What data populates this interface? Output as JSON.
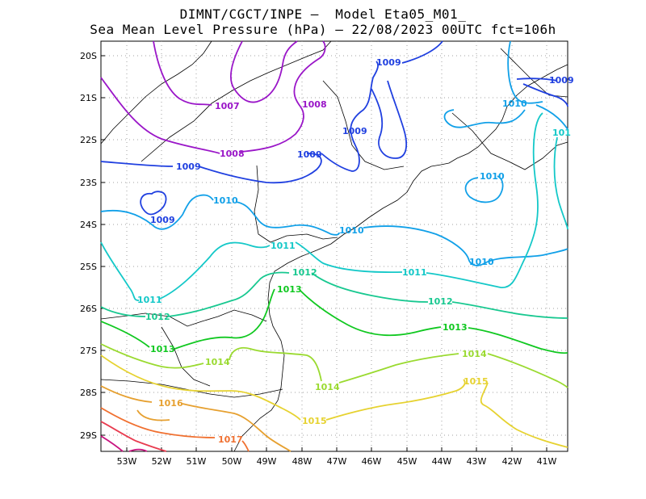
{
  "header": {
    "title_line1": "DIMNT/CGCT/INPE –  Model Eta05_M01_",
    "title_line2": "Sea Mean Level Pressure (hPa) – 22/08/2023 00UTC fct=106h"
  },
  "axes": {
    "lat_labels": [
      "20S",
      "21S",
      "22S",
      "23S",
      "24S",
      "25S",
      "26S",
      "27S",
      "28S",
      "29S"
    ],
    "lon_labels": [
      "53W",
      "52W",
      "51W",
      "50W",
      "49W",
      "48W",
      "47W",
      "46W",
      "45W",
      "44W",
      "43W",
      "42W",
      "41W"
    ]
  },
  "contour_labels": [
    {
      "text": "1007",
      "color": "#9a16c8"
    },
    {
      "text": "1008",
      "color": "#9a16c8"
    },
    {
      "text": "1008",
      "color": "#9a16c8"
    },
    {
      "text": "1009",
      "color": "#2040e0"
    },
    {
      "text": "1009",
      "color": "#2040e0"
    },
    {
      "text": "1009",
      "color": "#2040e0"
    },
    {
      "text": "1009",
      "color": "#2040e0"
    },
    {
      "text": "1009",
      "color": "#2040e0"
    },
    {
      "text": "1009",
      "color": "#2040e0"
    },
    {
      "text": "1010",
      "color": "#11a0e8"
    },
    {
      "text": "1010",
      "color": "#11a0e8"
    },
    {
      "text": "1010",
      "color": "#11a0e8"
    },
    {
      "text": "1010",
      "color": "#11a0e8"
    },
    {
      "text": "1010",
      "color": "#11a0e8"
    },
    {
      "text": "1011",
      "color": "#14c8c8"
    },
    {
      "text": "1011",
      "color": "#14c8c8"
    },
    {
      "text": "1011",
      "color": "#14c8c8"
    },
    {
      "text": "101",
      "color": "#14c8c8"
    },
    {
      "text": "1012",
      "color": "#18c890"
    },
    {
      "text": "1012",
      "color": "#18c890"
    },
    {
      "text": "1012",
      "color": "#18c890"
    },
    {
      "text": "1013",
      "color": "#10c820"
    },
    {
      "text": "1013",
      "color": "#10c820"
    },
    {
      "text": "1013",
      "color": "#10c820"
    },
    {
      "text": "1014",
      "color": "#9ada30"
    },
    {
      "text": "1014",
      "color": "#9ada30"
    },
    {
      "text": "1014",
      "color": "#9ada30"
    },
    {
      "text": "1015",
      "color": "#e6d230"
    },
    {
      "text": "1015",
      "color": "#e6d230"
    },
    {
      "text": "1016",
      "color": "#e6a030"
    },
    {
      "text": "1017",
      "color": "#f07030"
    }
  ],
  "colors": {
    "c1007": "#9a16c8",
    "c1008": "#9a16c8",
    "c1009": "#2040e0",
    "c1010": "#11a0e8",
    "c1011": "#14c8c8",
    "c1012": "#18c890",
    "c1013": "#10c820",
    "c1014": "#9ada30",
    "c1015": "#e6d230",
    "c1016": "#e6a030",
    "c1017": "#f07030",
    "c1018": "#e83c50",
    "c1019": "#c81480",
    "coast": "#000000",
    "grid": "#a0a0a0"
  }
}
